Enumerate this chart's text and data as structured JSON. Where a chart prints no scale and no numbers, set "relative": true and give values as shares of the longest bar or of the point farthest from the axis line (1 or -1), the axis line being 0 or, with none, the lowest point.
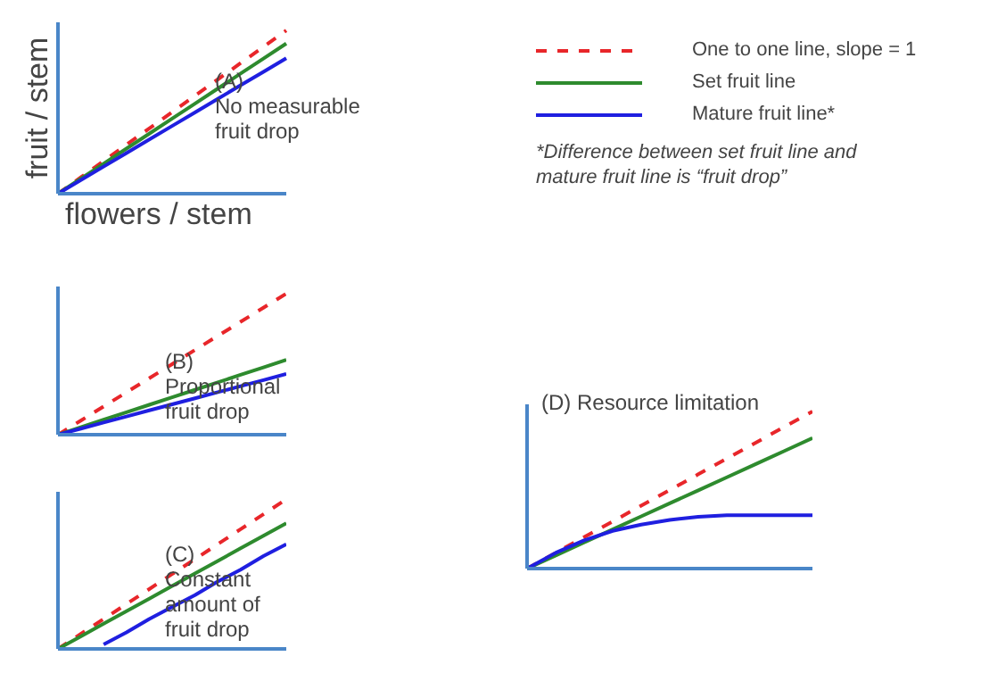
{
  "chart_data": [
    {
      "type": "line",
      "relative": true,
      "xlabel": "flowers / stem",
      "ylabel": "fruit / stem",
      "legend": "right",
      "categories": [
        null,
        null,
        null,
        null,
        null,
        null,
        null,
        null,
        null,
        null,
        null
      ],
      "series": [
        {
          "name": "One to one line, slope = 1",
          "color": "#e8262a",
          "line_style": "dashed",
          "values": [
            0,
            0.1,
            0.2,
            0.3,
            0.4,
            0.5,
            0.6,
            0.7,
            0.8,
            0.9,
            1
          ]
        },
        {
          "name": "Set fruit line",
          "color": "#2e8b2e",
          "values": [
            0,
            0.092,
            0.184,
            0.276,
            0.368,
            0.46,
            0.552,
            0.644,
            0.736,
            0.828,
            0.92
          ]
        },
        {
          "name": "Mature fruit line*",
          "color": "#1f1fe0",
          "values": [
            0,
            0.083,
            0.166,
            0.249,
            0.332,
            0.415,
            0.498,
            0.581,
            0.664,
            0.747,
            0.83
          ]
        }
      ],
      "annotations": [
        "(A)\nNo measurable\nfruit drop",
        "*Difference between set fruit line and\nmature fruit line is “fruit drop”"
      ]
    },
    {
      "type": "line",
      "relative": true,
      "categories": [
        null,
        null,
        null,
        null,
        null,
        null,
        null,
        null,
        null,
        null,
        null
      ],
      "series": [
        {
          "color": "#e8262a",
          "line_style": "dashed",
          "values": [
            0,
            0.1,
            0.2,
            0.3,
            0.4,
            0.5,
            0.6,
            0.7,
            0.8,
            0.9,
            1
          ]
        },
        {
          "color": "#2e8b2e",
          "values": [
            0,
            0.053,
            0.106,
            0.159,
            0.212,
            0.265,
            0.318,
            0.371,
            0.424,
            0.477,
            0.53
          ]
        },
        {
          "color": "#1f1fe0",
          "values": [
            0,
            0.043,
            0.086,
            0.129,
            0.172,
            0.215,
            0.258,
            0.301,
            0.344,
            0.387,
            0.43
          ]
        }
      ],
      "annotations": [
        "(B)\nProportional\nfruit drop"
      ]
    },
    {
      "type": "line",
      "relative": true,
      "categories": [
        null,
        null,
        null,
        null,
        null,
        null,
        null,
        null,
        null,
        null,
        null
      ],
      "series": [
        {
          "color": "#e8262a",
          "line_style": "dashed",
          "values": [
            0,
            0.1,
            0.2,
            0.3,
            0.4,
            0.5,
            0.6,
            0.7,
            0.8,
            0.9,
            1
          ]
        },
        {
          "color": "#2e8b2e",
          "values": [
            0,
            0.084,
            0.168,
            0.252,
            0.336,
            0.42,
            0.504,
            0.588,
            0.672,
            0.756,
            0.84
          ]
        },
        {
          "color": "#1f1fe0",
          "values": [
            null,
            null,
            0.03,
            0.11,
            0.2,
            0.28,
            0.36,
            0.45,
            0.53,
            0.62,
            0.7
          ]
        }
      ],
      "annotations": [
        "(C)\nConstant\namount of\nfruit drop"
      ]
    },
    {
      "type": "line",
      "relative": true,
      "categories": [
        null,
        null,
        null,
        null,
        null,
        null,
        null,
        null,
        null,
        null,
        null
      ],
      "series": [
        {
          "color": "#e8262a",
          "line_style": "dashed",
          "values": [
            0,
            0.1,
            0.2,
            0.3,
            0.4,
            0.5,
            0.6,
            0.7,
            0.8,
            0.9,
            1
          ]
        },
        {
          "color": "#2e8b2e",
          "values": [
            0,
            0.083,
            0.166,
            0.249,
            0.332,
            0.415,
            0.498,
            0.581,
            0.664,
            0.747,
            0.83
          ]
        },
        {
          "color": "#1f1fe0",
          "values": [
            0,
            0.1,
            0.18,
            0.24,
            0.28,
            0.31,
            0.33,
            0.34,
            0.34,
            0.34,
            0.34
          ]
        }
      ],
      "annotations": [
        "(D) Resource limitation"
      ]
    }
  ]
}
